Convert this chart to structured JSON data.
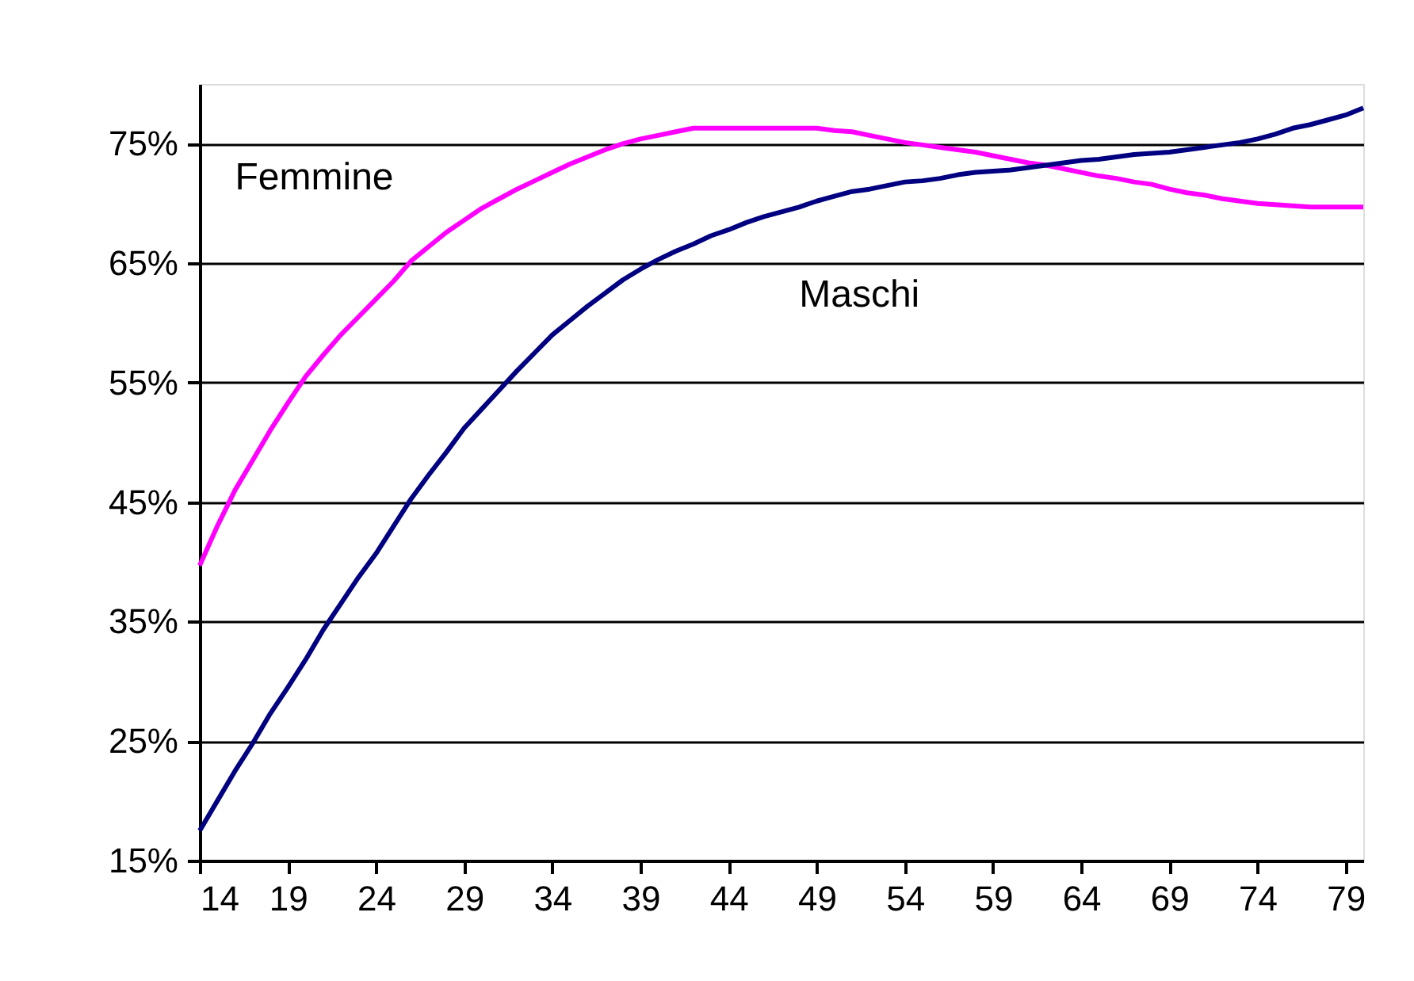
{
  "chart_data": {
    "type": "line",
    "x": [
      14,
      15,
      16,
      17,
      18,
      19,
      20,
      21,
      22,
      23,
      24,
      25,
      26,
      27,
      28,
      29,
      30,
      31,
      32,
      33,
      34,
      35,
      36,
      37,
      38,
      39,
      40,
      41,
      42,
      43,
      44,
      45,
      46,
      47,
      48,
      49,
      50,
      51,
      52,
      53,
      54,
      55,
      56,
      57,
      58,
      59,
      60,
      61,
      62,
      63,
      64,
      65,
      66,
      67,
      68,
      69,
      70,
      71,
      72,
      73,
      74,
      75,
      76,
      77,
      78,
      79,
      80
    ],
    "series": [
      {
        "name": "Femmine",
        "color": "#ff00ff",
        "values": [
          39.7,
          43,
          46,
          48.5,
          51,
          53.3,
          55.5,
          57.3,
          59,
          60.5,
          62,
          63.5,
          65.2,
          66.4,
          67.6,
          68.6,
          69.6,
          70.4,
          71.2,
          71.9,
          72.6,
          73.3,
          73.9,
          74.5,
          75,
          75.4,
          75.7,
          76,
          76.3,
          76.3,
          76.3,
          76.3,
          76.3,
          76.3,
          76.3,
          76.3,
          76.1,
          76,
          75.7,
          75.4,
          75.1,
          74.9,
          74.7,
          74.5,
          74.3,
          74,
          73.7,
          73.4,
          73.2,
          72.9,
          72.6,
          72.3,
          72.1,
          71.8,
          71.6,
          71.2,
          70.9,
          70.7,
          70.4,
          70.2,
          70,
          69.9,
          69.8,
          69.7,
          69.7,
          69.7,
          69.7
        ]
      },
      {
        "name": "Maschi",
        "color": "#000080",
        "values": [
          17.5,
          20,
          22.5,
          24.8,
          27.3,
          29.5,
          31.8,
          34.3,
          36.5,
          38.7,
          40.7,
          43,
          45.3,
          47.3,
          49.2,
          51.2,
          52.8,
          54.4,
          56,
          57.5,
          59,
          60.2,
          61.4,
          62.5,
          63.6,
          64.5,
          65.3,
          66,
          66.6,
          67.3,
          67.8,
          68.4,
          68.9,
          69.3,
          69.7,
          70.2,
          70.6,
          71,
          71.2,
          71.5,
          71.8,
          71.9,
          72.1,
          72.4,
          72.6,
          72.7,
          72.8,
          73,
          73.2,
          73.4,
          73.6,
          73.7,
          73.9,
          74.1,
          74.2,
          74.3,
          74.5,
          74.7,
          74.9,
          75.1,
          75.4,
          75.8,
          76.3,
          76.6,
          77,
          77.4,
          78
        ]
      }
    ],
    "xlim": [
      14,
      80
    ],
    "xticks": [
      14,
      19,
      24,
      29,
      34,
      39,
      44,
      49,
      54,
      59,
      64,
      69,
      74,
      79
    ],
    "ylim": [
      15,
      80
    ],
    "yticks": [
      {
        "value": 15,
        "label": "15%"
      },
      {
        "value": 25,
        "label": "25%"
      },
      {
        "value": 35,
        "label": "35%"
      },
      {
        "value": 45,
        "label": "45%"
      },
      {
        "value": 55,
        "label": "55%"
      },
      {
        "value": 65,
        "label": "65%"
      },
      {
        "value": 75,
        "label": "75%"
      }
    ],
    "grid": "y",
    "legend": false,
    "marker": "none",
    "line_style": "solid"
  }
}
